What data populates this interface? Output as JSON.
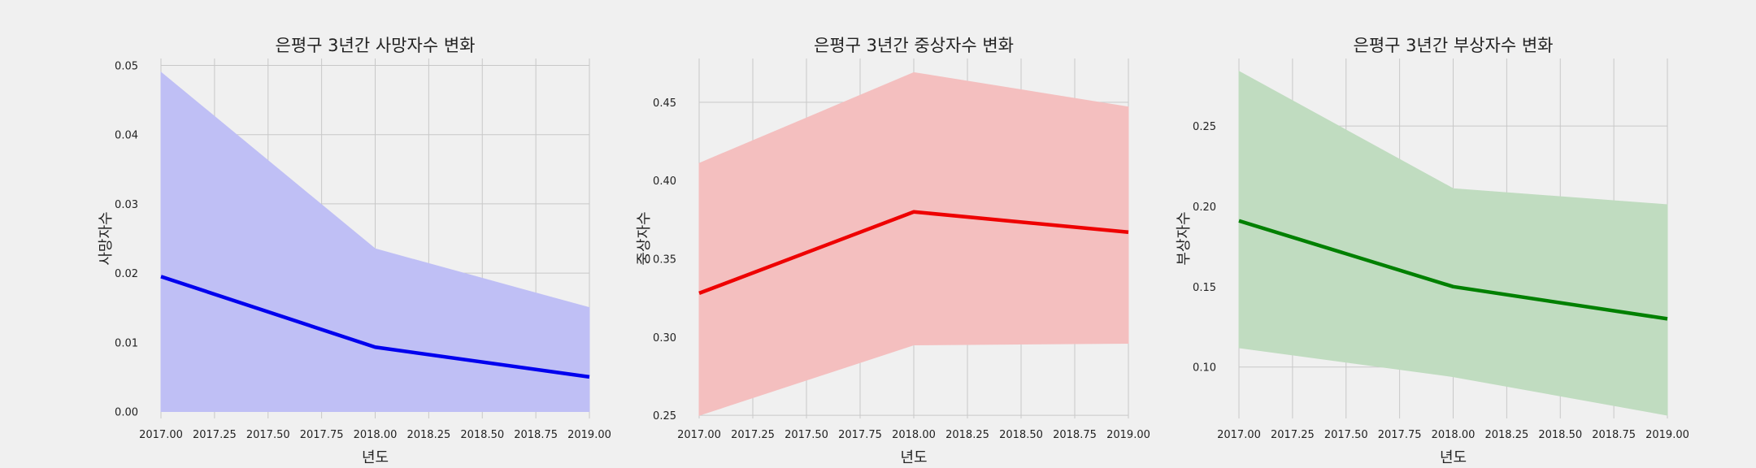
{
  "chart_data": [
    {
      "type": "line",
      "title": "은평구 3년간 사망자수 변화",
      "xlabel": "년도",
      "ylabel": "사망자수",
      "x": [
        2017,
        2018,
        2019
      ],
      "series": [
        {
          "values": [
            0.0195,
            0.0093,
            0.005
          ],
          "ci_lower": [
            0.0,
            0.0,
            0.0
          ],
          "ci_upper": [
            0.049,
            0.0235,
            0.015
          ],
          "color": "#0000ee",
          "fill_color": "#bfbff5"
        }
      ],
      "xlim": [
        2017,
        2019
      ],
      "ylim": [
        -0.001,
        0.051
      ],
      "xticks": [
        "2017.00",
        "2017.25",
        "2017.50",
        "2017.75",
        "2018.00",
        "2018.25",
        "2018.50",
        "2018.75",
        "2019.00"
      ],
      "yticks": [
        "0.00",
        "0.01",
        "0.02",
        "0.03",
        "0.04",
        "0.05"
      ],
      "grid": true
    },
    {
      "type": "line",
      "title": "은평구 3년간 중상자수 변화",
      "xlabel": "년도",
      "ylabel": "중상자수",
      "x": [
        2017,
        2018,
        2019
      ],
      "series": [
        {
          "values": [
            0.328,
            0.38,
            0.367
          ],
          "ci_lower": [
            0.25,
            0.295,
            0.296
          ],
          "ci_upper": [
            0.411,
            0.469,
            0.447
          ],
          "color": "#ee0000",
          "fill_color": "#f4bfbf"
        }
      ],
      "xlim": [
        2017,
        2019
      ],
      "ylim": [
        0.248,
        0.478
      ],
      "xticks": [
        "2017.00",
        "2017.25",
        "2017.50",
        "2017.75",
        "2018.00",
        "2018.25",
        "2018.50",
        "2018.75",
        "2019.00"
      ],
      "yticks": [
        "0.25",
        "0.30",
        "0.35",
        "0.40",
        "0.45"
      ],
      "grid": true
    },
    {
      "type": "line",
      "title": "은평구 3년간 부상자수 변화",
      "xlabel": "년도",
      "ylabel": "부상자수",
      "x": [
        2017,
        2018,
        2019
      ],
      "series": [
        {
          "values": [
            0.191,
            0.15,
            0.13
          ],
          "ci_lower": [
            0.112,
            0.094,
            0.07
          ],
          "ci_upper": [
            0.284,
            0.211,
            0.201
          ],
          "color": "#008000",
          "fill_color": "#c0dcc0"
        }
      ],
      "xlim": [
        2017,
        2019
      ],
      "ylim": [
        0.068,
        0.292
      ],
      "xticks": [
        "2017.00",
        "2017.25",
        "2017.50",
        "2017.75",
        "2018.00",
        "2018.25",
        "2018.50",
        "2018.75",
        "2019.00"
      ],
      "yticks": [
        "0.10",
        "0.15",
        "0.20",
        "0.25"
      ],
      "grid": true
    }
  ]
}
